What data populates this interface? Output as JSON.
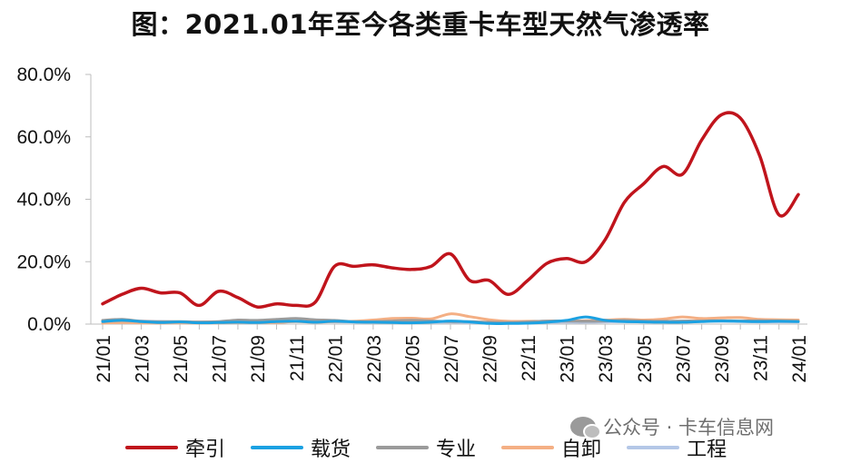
{
  "chart_data": {
    "type": "line",
    "title": "图：2021.01年至今各类重卡车型天然气渗透率",
    "x": [
      "21/01",
      "21/02",
      "21/03",
      "21/04",
      "21/05",
      "21/06",
      "21/07",
      "21/08",
      "21/09",
      "21/10",
      "21/11",
      "21/12",
      "22/01",
      "22/02",
      "22/03",
      "22/04",
      "22/05",
      "22/06",
      "22/07",
      "22/08",
      "22/09",
      "22/10",
      "22/11",
      "22/12",
      "23/01",
      "23/02",
      "23/03",
      "23/04",
      "23/05",
      "23/06",
      "23/07",
      "23/08",
      "23/09",
      "23/10",
      "23/11",
      "23/12",
      "24/01"
    ],
    "x_tick_labels": [
      "21/01",
      "21/03",
      "21/05",
      "21/07",
      "21/09",
      "21/11",
      "22/01",
      "22/03",
      "22/05",
      "22/07",
      "22/09",
      "22/11",
      "23/01",
      "23/03",
      "23/05",
      "23/07",
      "23/09",
      "23/11",
      "24/01"
    ],
    "y_tick_labels": [
      "0.0%",
      "20.0%",
      "40.0%",
      "60.0%",
      "80.0%"
    ],
    "ylim": [
      0,
      80
    ],
    "y_unit": "%",
    "series": [
      {
        "name": "牵引",
        "color": "#C0141C",
        "values": [
          6.5,
          9.5,
          11.5,
          10.0,
          10.0,
          6.0,
          10.5,
          8.5,
          5.5,
          6.5,
          6.0,
          7.0,
          18.5,
          18.5,
          19.0,
          18.0,
          17.5,
          18.5,
          22.5,
          14.0,
          14.0,
          9.5,
          14.0,
          19.5,
          21.0,
          20.0,
          27.0,
          39.0,
          45.0,
          50.5,
          48.0,
          59.0,
          67.0,
          66.0,
          54.0,
          35.0,
          41.5
        ]
      },
      {
        "name": "载货",
        "color": "#1BA1E2",
        "values": [
          0.8,
          1.2,
          0.8,
          0.5,
          0.7,
          0.4,
          0.5,
          0.6,
          0.5,
          0.8,
          0.9,
          0.6,
          0.9,
          0.7,
          0.6,
          0.5,
          0.4,
          0.6,
          1.0,
          0.7,
          0.2,
          0.2,
          0.3,
          0.6,
          1.2,
          2.3,
          1.2,
          0.8,
          0.7,
          0.6,
          0.6,
          0.8,
          1.0,
          0.9,
          0.8,
          0.9,
          0.8
        ]
      },
      {
        "name": "专业",
        "color": "#9B9B9B",
        "values": [
          1.2,
          1.5,
          0.9,
          0.8,
          0.8,
          0.7,
          0.8,
          1.3,
          1.2,
          1.5,
          1.8,
          1.4,
          1.2,
          0.8,
          0.8,
          1.0,
          1.2,
          1.0,
          0.8,
          0.8,
          0.6,
          0.5,
          0.7,
          1.0,
          1.0,
          0.9,
          1.0,
          1.2,
          1.0,
          0.9,
          1.0,
          1.0,
          1.1,
          1.0,
          1.1,
          1.0,
          0.9
        ]
      },
      {
        "name": "自卸",
        "color": "#F4AF84",
        "values": [
          0.3,
          0.5,
          0.4,
          0.3,
          0.4,
          0.3,
          0.4,
          0.5,
          0.5,
          0.5,
          0.8,
          0.6,
          0.8,
          0.9,
          1.3,
          1.8,
          1.9,
          1.7,
          3.3,
          2.4,
          1.4,
          0.9,
          0.9,
          0.9,
          1.0,
          1.1,
          1.3,
          1.5,
          1.3,
          1.6,
          2.3,
          1.8,
          2.0,
          2.1,
          1.5,
          1.4,
          1.3
        ]
      },
      {
        "name": "工程",
        "color": "#B4C7E7",
        "values": [
          0.9,
          1.0,
          1.0,
          0.8,
          0.7,
          0.6,
          0.6,
          0.7,
          0.7,
          0.8,
          0.9,
          0.8,
          0.7,
          0.7,
          0.6,
          0.6,
          0.6,
          0.6,
          0.6,
          0.5,
          0.4,
          0.4,
          0.4,
          0.6,
          0.6,
          0.6,
          0.7,
          0.8,
          0.7,
          0.7,
          0.8,
          0.9,
          0.9,
          0.8,
          0.7,
          0.7,
          0.7
        ]
      }
    ]
  },
  "watermark": {
    "text": "公众号 · 卡车信息网",
    "icon": "wechat-icon"
  }
}
